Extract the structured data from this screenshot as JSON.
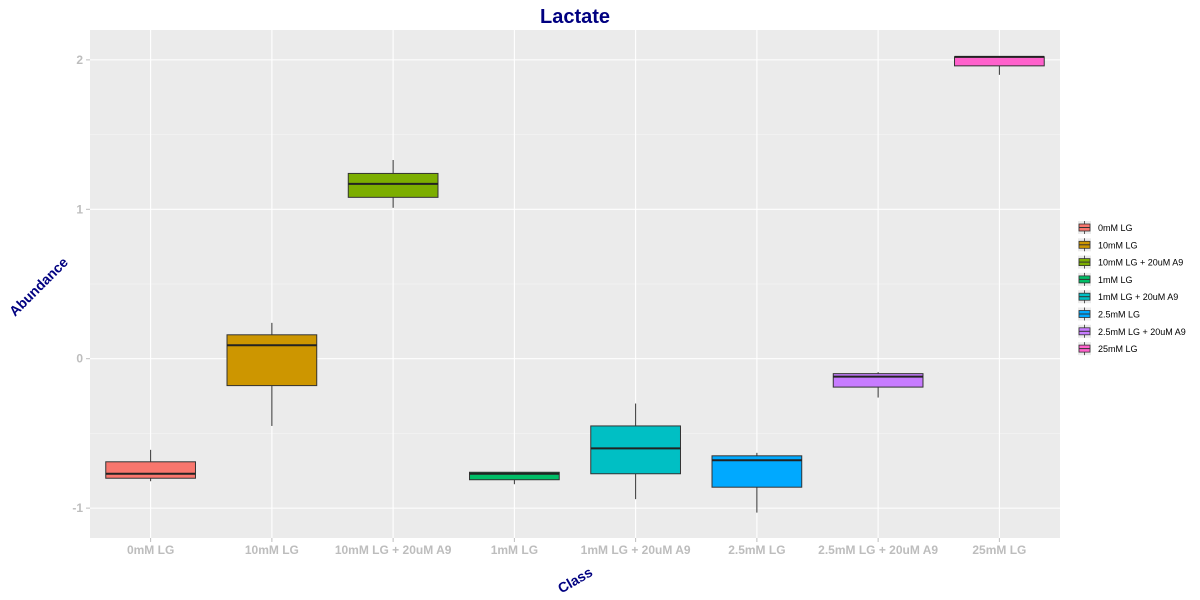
{
  "chart_data": {
    "type": "box",
    "title": "Lactate",
    "xlabel": "Class",
    "ylabel": "Abundance",
    "ylim": [
      -1.2,
      2.2
    ],
    "yticks": [
      -1,
      0,
      1,
      2
    ],
    "grid": true,
    "legend_position": "right",
    "categories": [
      "0mM LG",
      "10mM LG",
      "10mM LG + 20uM A9",
      "1mM LG",
      "1mM LG + 20uM A9",
      "2.5mM LG",
      "2.5mM LG + 20uM A9",
      "25mM LG"
    ],
    "boxes": [
      {
        "name": "0mM LG",
        "color": "#F8766D",
        "min": -0.82,
        "q1": -0.8,
        "median": -0.77,
        "q3": -0.69,
        "max": -0.61
      },
      {
        "name": "10mM LG",
        "color": "#CD9600",
        "min": -0.45,
        "q1": -0.18,
        "median": 0.09,
        "q3": 0.16,
        "max": 0.24
      },
      {
        "name": "10mM LG + 20uM A9",
        "color": "#7CAE00",
        "min": 1.01,
        "q1": 1.08,
        "median": 1.17,
        "q3": 1.24,
        "max": 1.33
      },
      {
        "name": "1mM LG",
        "color": "#00BE67",
        "min": -0.84,
        "q1": -0.81,
        "median": -0.77,
        "q3": -0.76,
        "max": -0.76
      },
      {
        "name": "1mM LG + 20uM A9",
        "color": "#00BFC4",
        "min": -0.94,
        "q1": -0.77,
        "median": -0.6,
        "q3": -0.45,
        "max": -0.3
      },
      {
        "name": "2.5mM LG",
        "color": "#00A9FF",
        "min": -1.03,
        "q1": -0.86,
        "median": -0.68,
        "q3": -0.65,
        "max": -0.63
      },
      {
        "name": "2.5mM LG + 20uM A9",
        "color": "#C77CFF",
        "min": -0.26,
        "q1": -0.19,
        "median": -0.12,
        "q3": -0.1,
        "max": -0.09
      },
      {
        "name": "25mM LG",
        "color": "#FF61CC",
        "min": 1.9,
        "q1": 1.96,
        "median": 2.02,
        "q3": 2.02,
        "max": 2.02
      }
    ]
  }
}
